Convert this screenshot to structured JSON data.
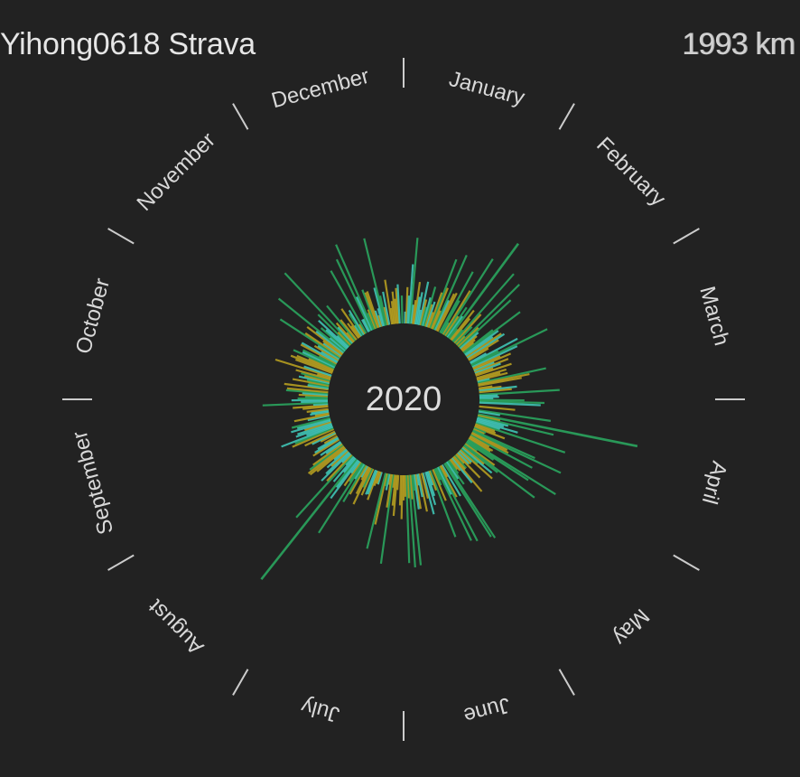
{
  "header": {
    "title": "Yihong0618 Strava",
    "total_distance": "1993 km"
  },
  "chart_data": {
    "type": "radial-bar",
    "center_label": "2020",
    "months": [
      "January",
      "February",
      "March",
      "April",
      "May",
      "June",
      "July",
      "August",
      "September",
      "October",
      "November",
      "December"
    ],
    "colors": {
      "background": "#222222",
      "short_run": "#b8a020",
      "mid_run": "#40c8b8",
      "long_run": "#2aa860",
      "separator": "#cccccc",
      "text": "#dddddd"
    },
    "legend": "none",
    "grid": false
  }
}
